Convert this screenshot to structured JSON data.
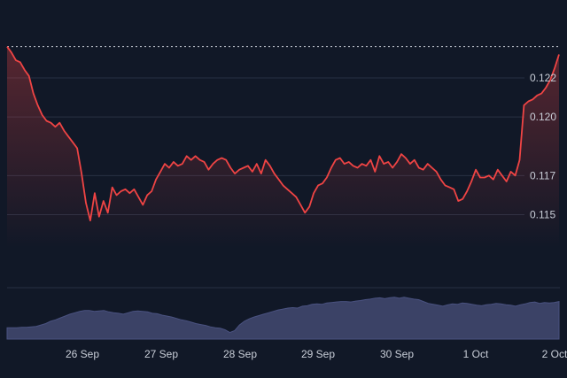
{
  "chart_data": {
    "type": "area",
    "title": "",
    "xlabel": "",
    "ylabel": "",
    "x_ticks": [
      "26 Sep",
      "27 Sep",
      "28 Sep",
      "29 Sep",
      "30 Sep",
      "1 Oct",
      "2 Oct"
    ],
    "y_ticks": [
      "0.115",
      "0.117",
      "0.120",
      "0.122"
    ],
    "ylim": [
      0.1133,
      0.1244
    ],
    "reference_line": 0.1236,
    "grid": "horizontal",
    "colors": {
      "price_line": "#ef4444",
      "volume_fill": "#3b4266",
      "background": "#111827"
    },
    "series": [
      {
        "values": [
          0.1236,
          0.1233,
          0.1229,
          0.1228,
          0.1224,
          0.1221,
          0.1212,
          0.1206,
          0.1201,
          0.1198,
          0.1197,
          0.1195,
          0.1197,
          0.1193,
          0.119,
          0.1187,
          0.1184,
          0.1171,
          0.1156,
          0.1147,
          0.1161,
          0.1149,
          0.1157,
          0.1151,
          0.1164,
          0.116,
          0.1162,
          0.1163,
          0.1161,
          0.1163,
          0.1159,
          0.1155,
          0.116,
          0.1162,
          0.1168,
          0.1172,
          0.1176,
          0.1174,
          0.1177,
          0.1175,
          0.1176,
          0.118,
          0.1178,
          0.118,
          0.1178,
          0.1177,
          0.1173,
          0.1176,
          0.1178,
          0.1179,
          0.1178,
          0.1174,
          0.1171,
          0.1173,
          0.1174,
          0.1175,
          0.1172,
          0.1176,
          0.1171,
          0.1178,
          0.1175,
          0.1171,
          0.1168,
          0.1165,
          0.1163,
          0.1161,
          0.1159,
          0.1155,
          0.1151,
          0.1154,
          0.1161,
          0.1165,
          0.1166,
          0.1169,
          0.1174,
          0.1178,
          0.1179,
          0.1176,
          0.1177,
          0.1175,
          0.1174,
          0.1176,
          0.1175,
          0.1178,
          0.1172,
          0.118,
          0.1176,
          0.1177,
          0.1174,
          0.1177,
          0.1181,
          0.1179,
          0.1176,
          0.1178,
          0.1174,
          0.1173,
          0.1176,
          0.1174,
          0.1172,
          0.1168,
          0.1165,
          0.1164,
          0.1163,
          0.1157,
          0.1158,
          0.1162,
          0.1167,
          0.1173,
          0.1169,
          0.1169,
          0.117,
          0.1168,
          0.1173,
          0.117,
          0.1167,
          0.1172,
          0.117,
          0.1178,
          0.1206,
          0.1208,
          0.1209,
          0.1211,
          0.1212,
          0.1215,
          0.1219,
          0.1225,
          0.1232
        ]
      }
    ],
    "volume": [
      0.24,
      0.24,
      0.24,
      0.25,
      0.25,
      0.26,
      0.27,
      0.3,
      0.33,
      0.38,
      0.41,
      0.45,
      0.49,
      0.53,
      0.56,
      0.59,
      0.61,
      0.61,
      0.59,
      0.6,
      0.61,
      0.58,
      0.56,
      0.55,
      0.53,
      0.56,
      0.59,
      0.6,
      0.59,
      0.58,
      0.55,
      0.54,
      0.51,
      0.49,
      0.47,
      0.44,
      0.41,
      0.39,
      0.36,
      0.33,
      0.31,
      0.29,
      0.26,
      0.24,
      0.23,
      0.2,
      0.14,
      0.18,
      0.3,
      0.38,
      0.43,
      0.47,
      0.5,
      0.53,
      0.56,
      0.59,
      0.62,
      0.64,
      0.66,
      0.67,
      0.66,
      0.7,
      0.71,
      0.74,
      0.75,
      0.74,
      0.77,
      0.78,
      0.79,
      0.8,
      0.8,
      0.79,
      0.81,
      0.82,
      0.84,
      0.85,
      0.87,
      0.88,
      0.86,
      0.88,
      0.89,
      0.87,
      0.89,
      0.87,
      0.85,
      0.84,
      0.8,
      0.76,
      0.74,
      0.72,
      0.7,
      0.73,
      0.75,
      0.74,
      0.77,
      0.76,
      0.74,
      0.72,
      0.71,
      0.73,
      0.74,
      0.76,
      0.75,
      0.73,
      0.72,
      0.7,
      0.73,
      0.75,
      0.78,
      0.79,
      0.76,
      0.78,
      0.77,
      0.78,
      0.8
    ]
  }
}
